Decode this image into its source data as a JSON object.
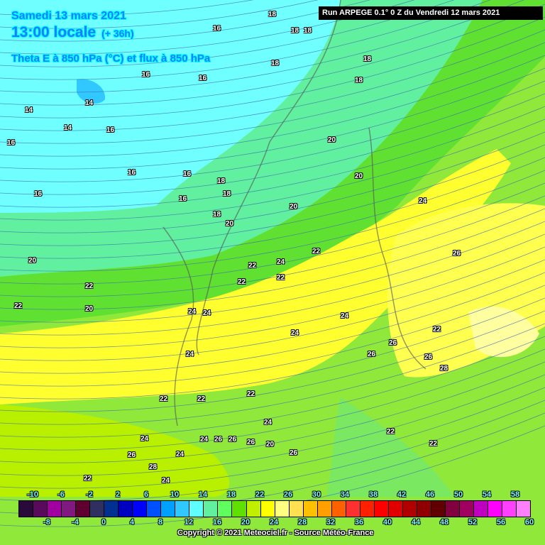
{
  "header": {
    "date": "Samedi 13 mars 2021",
    "time": "13:00 locale",
    "lead": "(+ 36h)",
    "parameter": "Theta E à 850 hPa (°C) et flux à 850 hPa",
    "run": "Run ARPEGE 0.1° 0 Z du Vendredi 12 mars 2021"
  },
  "legend": {
    "top_labels": [
      "-10",
      "-6",
      "-2",
      "2",
      "6",
      "10",
      "14",
      "18",
      "22",
      "26",
      "30",
      "34",
      "38",
      "42",
      "46",
      "50",
      "54",
      "58"
    ],
    "bottom_labels": [
      "-8",
      "-4",
      "0",
      "4",
      "8",
      "12",
      "16",
      "20",
      "24",
      "28",
      "32",
      "36",
      "40",
      "44",
      "48",
      "52",
      "56",
      "60"
    ],
    "colors": [
      "#2a0a3a",
      "#5a0a5a",
      "#a000a0",
      "#801a80",
      "#600030",
      "#303060",
      "#003090",
      "#0000c0",
      "#0000ff",
      "#0050ff",
      "#00a0ff",
      "#30c8ff",
      "#60ffff",
      "#60f0a0",
      "#60ff60",
      "#60e000",
      "#c0f000",
      "#ffff00",
      "#ffff80",
      "#ffe050",
      "#ffc000",
      "#ffa000",
      "#ff6000",
      "#ff3030",
      "#ff2000",
      "#ff0000",
      "#e00000",
      "#b00000",
      "#900000",
      "#600000",
      "#800040",
      "#a00060",
      "#c000c0",
      "#ff00ff",
      "#ff40ff",
      "#ff80ff"
    ]
  },
  "map": {
    "isotherm_labels": [
      "14",
      "14",
      "14",
      "16",
      "16",
      "16",
      "16",
      "16",
      "16",
      "18",
      "18",
      "18",
      "18",
      "18",
      "18",
      "16",
      "16",
      "16",
      "18",
      "18",
      "18",
      "20",
      "20",
      "20",
      "20",
      "22",
      "22",
      "22",
      "22",
      "24",
      "24",
      "24",
      "24",
      "24",
      "26",
      "26",
      "26",
      "26",
      "28",
      "22",
      "22",
      "22",
      "22",
      "24",
      "24",
      "26",
      "26",
      "26",
      "20",
      "22",
      "22",
      "24",
      "24",
      "26",
      "26",
      "28",
      "22",
      "24",
      "20",
      "20",
      "22",
      "22",
      "24",
      "24"
    ]
  },
  "footer": {
    "copyright": "Copyright © 2021 Meteociel.fr - Source Météo-France"
  }
}
